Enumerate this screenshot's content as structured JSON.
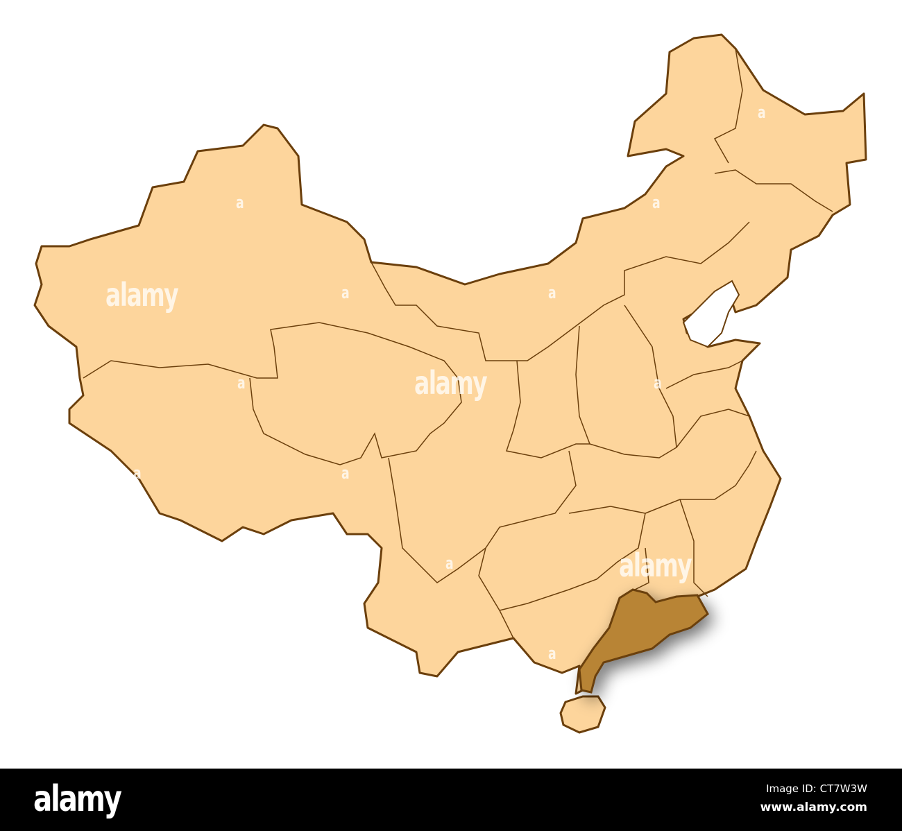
{
  "map": {
    "country": "China",
    "highlighted_region": "Guangdong",
    "colors": {
      "land": "#fdd59c",
      "border": "#6b3f0c",
      "highlight": "#b88434",
      "background": "#ffffff"
    }
  },
  "watermarks": {
    "large": [
      "alamy",
      "alamy",
      "alamy"
    ],
    "small": [
      "a",
      "a",
      "a",
      "a",
      "a",
      "a",
      "a",
      "a",
      "a",
      "a",
      "a"
    ]
  },
  "footer": {
    "logo": "alamy",
    "image_id": "Image ID: CT7W3W",
    "url": "www.alamy.com"
  }
}
